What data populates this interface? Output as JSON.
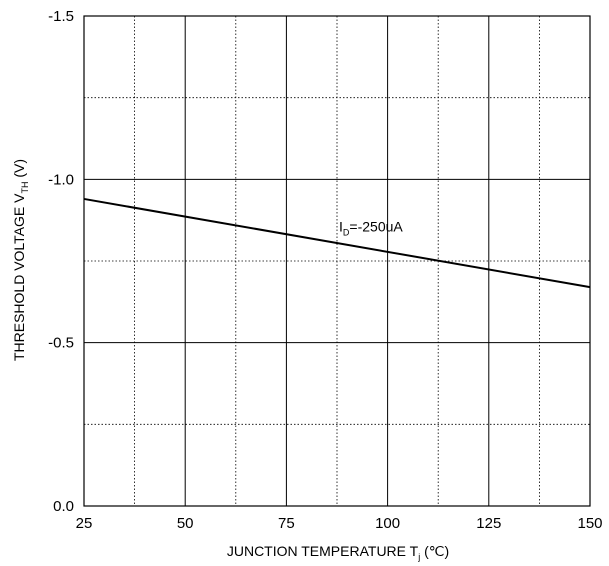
{
  "chart_data": {
    "type": "line",
    "title": "",
    "xlabel": {
      "main": "JUNCTION TEMPERATURE T",
      "subscript": "j",
      "suffix": " (℃)"
    },
    "ylabel": {
      "main": "THRESHOLD VOLTAGE V",
      "subscript": "TH",
      "suffix": " (V)"
    },
    "xlim": [
      25,
      150
    ],
    "ylim": [
      0.0,
      -1.5
    ],
    "y_inverted": true,
    "x_major_ticks": [
      25,
      50,
      75,
      100,
      125,
      150
    ],
    "x_tick_labels": [
      "25",
      "50",
      "75",
      "100",
      "125",
      "150"
    ],
    "y_major_ticks": [
      0.0,
      -0.5,
      -1.0,
      -1.5
    ],
    "y_tick_labels": [
      "0.0",
      "-0.5",
      "-1.0",
      "-1.5"
    ],
    "x_minor_ticks": [
      37.5,
      62.5,
      87.5,
      112.5,
      137.5
    ],
    "y_minor_ticks": [
      -0.25,
      -0.75,
      -1.25
    ],
    "grid": {
      "major": "solid",
      "minor": "dotted"
    },
    "series": [
      {
        "label": {
          "main": "I",
          "subscript": "D",
          "suffix": "=-250uA"
        },
        "label_anchor": {
          "x": 88,
          "y": -0.84
        },
        "x": [
          25,
          150
        ],
        "y": [
          -0.94,
          -0.67
        ]
      }
    ]
  }
}
